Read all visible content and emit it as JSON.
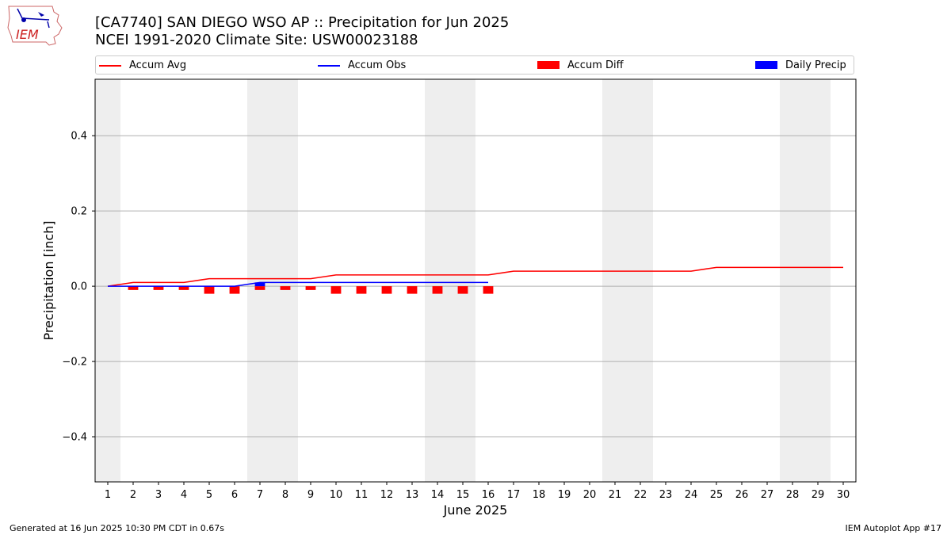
{
  "header": {
    "logo_text": "IEM",
    "title_line1": "[CA7740] SAN DIEGO WSO AP :: Precipitation for Jun 2025",
    "title_line2": "NCEI 1991-2020 Climate Site: USW00023188"
  },
  "legend": {
    "placement": "top",
    "items": [
      {
        "label": "Accum Avg",
        "kind": "line",
        "color": "#ff0000"
      },
      {
        "label": "Accum Obs",
        "kind": "line",
        "color": "#0000ff"
      },
      {
        "label": "Accum Diff",
        "kind": "box",
        "color": "#ff0000"
      },
      {
        "label": "Daily Precip",
        "kind": "box",
        "color": "#0000ff"
      }
    ]
  },
  "footer": {
    "left": "Generated at 16 Jun 2025 10:30 PM CDT in 0.67s",
    "right": "IEM Autoplot App #17"
  },
  "chart_data": {
    "type": "line",
    "xlabel": "June 2025",
    "ylabel": "Precipitation [inch]",
    "xlim": [
      0.5,
      30.5
    ],
    "ylim": [
      -0.52,
      0.55
    ],
    "grid": "horizontal",
    "x_ticks": [
      1,
      2,
      3,
      4,
      5,
      6,
      7,
      8,
      9,
      10,
      11,
      12,
      13,
      14,
      15,
      16,
      17,
      18,
      19,
      20,
      21,
      22,
      23,
      24,
      25,
      26,
      27,
      28,
      29,
      30
    ],
    "y_ticks": [
      -0.4,
      -0.2,
      0.0,
      0.2,
      0.4
    ],
    "y_tick_labels": [
      "−0.4",
      "−0.2",
      "0.0",
      "0.2",
      "0.4"
    ],
    "weekend_days": [
      1,
      7,
      8,
      14,
      15,
      21,
      22,
      28,
      29
    ],
    "series": [
      {
        "name": "Accum Avg",
        "type": "line",
        "color": "#ff0000",
        "x": [
          1,
          2,
          3,
          4,
          5,
          6,
          7,
          8,
          9,
          10,
          11,
          12,
          13,
          14,
          15,
          16,
          17,
          18,
          19,
          20,
          21,
          22,
          23,
          24,
          25,
          26,
          27,
          28,
          29,
          30
        ],
        "values": [
          0.0,
          0.01,
          0.01,
          0.01,
          0.02,
          0.02,
          0.02,
          0.02,
          0.02,
          0.03,
          0.03,
          0.03,
          0.03,
          0.03,
          0.03,
          0.03,
          0.04,
          0.04,
          0.04,
          0.04,
          0.04,
          0.04,
          0.04,
          0.04,
          0.05,
          0.05,
          0.05,
          0.05,
          0.05,
          0.05
        ]
      },
      {
        "name": "Accum Obs",
        "type": "line",
        "color": "#0000ff",
        "x": [
          1,
          2,
          3,
          4,
          5,
          6,
          7,
          8,
          9,
          10,
          11,
          12,
          13,
          14,
          15,
          16
        ],
        "values": [
          0.0,
          0.0,
          0.0,
          0.0,
          0.0,
          0.0,
          0.01,
          0.01,
          0.01,
          0.01,
          0.01,
          0.01,
          0.01,
          0.01,
          0.01,
          0.01
        ]
      },
      {
        "name": "Accum Diff",
        "type": "bar",
        "color": "#ff0000",
        "x": [
          1,
          2,
          3,
          4,
          5,
          6,
          7,
          8,
          9,
          10,
          11,
          12,
          13,
          14,
          15,
          16
        ],
        "values": [
          0.0,
          -0.01,
          -0.01,
          -0.01,
          -0.02,
          -0.02,
          -0.01,
          -0.01,
          -0.01,
          -0.02,
          -0.02,
          -0.02,
          -0.02,
          -0.02,
          -0.02,
          -0.02
        ]
      },
      {
        "name": "Daily Precip",
        "type": "bar",
        "color": "#0000ff",
        "x": [
          7
        ],
        "values": [
          0.01
        ]
      }
    ]
  }
}
